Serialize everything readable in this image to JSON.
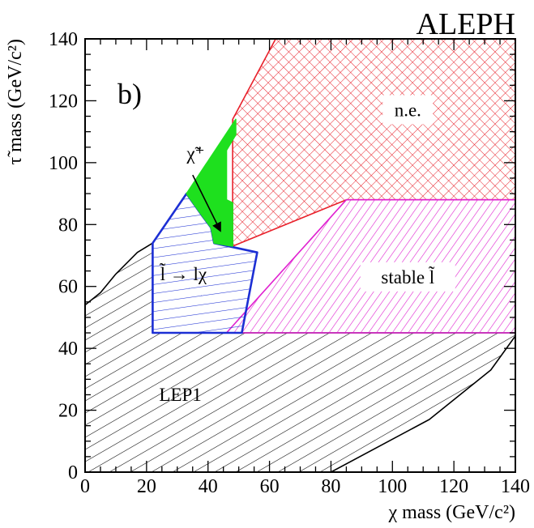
{
  "header": {
    "experiment": "ALEPH",
    "panel": "b)"
  },
  "chart_data": {
    "type": "area",
    "xlabel": "χ mass (GeV/c²)",
    "ylabel": "τ̃ mass (GeV/c²)",
    "xlim": [
      0,
      140
    ],
    "ylim": [
      0,
      140
    ],
    "xticks": [
      0,
      20,
      40,
      60,
      80,
      100,
      120,
      140
    ],
    "yticks": [
      0,
      20,
      40,
      60,
      80,
      100,
      120,
      140
    ],
    "xtick_labels": [
      "0",
      "20",
      "40",
      "60",
      "80",
      "100",
      "120",
      "140"
    ],
    "ytick_labels": [
      "0",
      "20",
      "40",
      "60",
      "80",
      "100",
      "120",
      "140"
    ],
    "regions": [
      {
        "key": "lep1",
        "label": "LEP1",
        "color": "#000000",
        "fill": "none",
        "hatch": "diagonal-down",
        "label_at": [
          31,
          23
        ],
        "points": [
          [
            0,
            54
          ],
          [
            5,
            58
          ],
          [
            10,
            64
          ],
          [
            17,
            71
          ],
          [
            22,
            74
          ],
          [
            22,
            45
          ],
          [
            140,
            45
          ],
          [
            140,
            44
          ],
          [
            132,
            33
          ],
          [
            112,
            17
          ],
          [
            80,
            0
          ],
          [
            0,
            0
          ]
        ]
      },
      {
        "key": "ne",
        "label": "n.e.",
        "color": "#e8202a",
        "fill": "none",
        "hatch": "cross",
        "label_at": [
          105,
          115
        ],
        "points": [
          [
            48,
            114
          ],
          [
            62,
            140
          ],
          [
            140,
            140
          ],
          [
            140,
            88
          ],
          [
            85,
            88
          ],
          [
            48,
            73
          ]
        ]
      },
      {
        "key": "stable",
        "label": "stable l̃",
        "color": "#e020d0",
        "fill": "none",
        "hatch": "diagonal-up",
        "label_at": [
          105,
          61
        ],
        "points": [
          [
            85,
            88
          ],
          [
            140,
            88
          ],
          [
            140,
            45
          ],
          [
            46,
            45
          ]
        ]
      },
      {
        "key": "slepton_decay",
        "label": "l̃ → lχ",
        "color": "#1c2fd4",
        "fill": "none",
        "hatch": "horizontal",
        "label_at": [
          32,
          62
        ],
        "points": [
          [
            22,
            74
          ],
          [
            22,
            45
          ],
          [
            51,
            45
          ],
          [
            56,
            71
          ],
          [
            42,
            74
          ],
          [
            41,
            79
          ],
          [
            38,
            83
          ],
          [
            33,
            90
          ]
        ]
      },
      {
        "key": "chargino",
        "label": "χ̃⁺",
        "color": "#1ee01e",
        "fill": "#1ee01e",
        "hatch": "none",
        "label_at": [
          36,
          101
        ],
        "points": [
          [
            33,
            90
          ],
          [
            49,
            114
          ],
          [
            49,
            109
          ],
          [
            46,
            104
          ],
          [
            46,
            88
          ],
          [
            48,
            87
          ],
          [
            48,
            73
          ],
          [
            42,
            74
          ],
          [
            41,
            79
          ],
          [
            38,
            83
          ]
        ]
      }
    ],
    "annotation": {
      "label": "χ̃⁺",
      "arrow_from": [
        35,
        96
      ],
      "arrow_to": [
        44,
        78
      ]
    },
    "grid": false,
    "legend": "none"
  }
}
